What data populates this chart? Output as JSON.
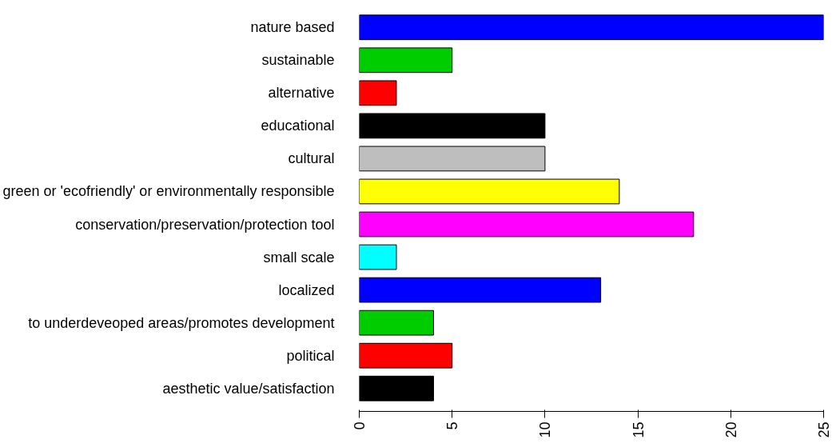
{
  "chart_data": {
    "type": "bar",
    "orientation": "horizontal",
    "categories": [
      "nature based",
      "sustainable",
      "alternative",
      "educational",
      "cultural",
      "green or 'ecofriendly' or environmentally responsible",
      "conservation/preservation/protection tool",
      "small scale",
      "localized",
      "to underdeveoped areas/promotes development",
      "political",
      "aesthetic value/satisfaction"
    ],
    "values": [
      25,
      5,
      2,
      10,
      10,
      14,
      18,
      2,
      13,
      4,
      5,
      4
    ],
    "colors": [
      "#0000ff",
      "#00cd00",
      "#ff0000",
      "#000000",
      "#bebebe",
      "#ffff00",
      "#ff00ff",
      "#00ffff",
      "#0000ff",
      "#00cd00",
      "#ff0000",
      "#000000"
    ],
    "xlim": [
      0,
      25
    ],
    "xticks": [
      0,
      5,
      10,
      15,
      20,
      25
    ],
    "grid": false
  }
}
